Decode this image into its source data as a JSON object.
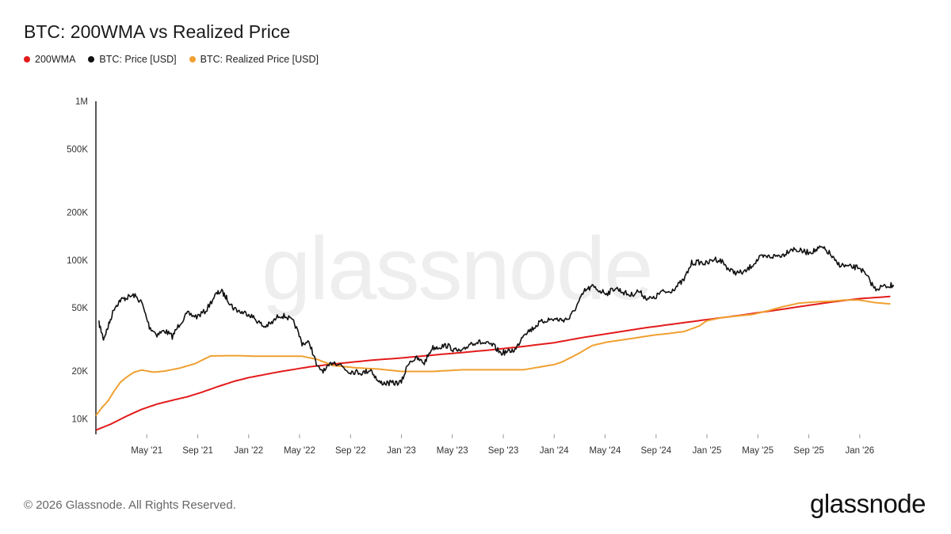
{
  "title": "BTC: 200WMA vs Realized Price",
  "legend": [
    {
      "label": "200WMA",
      "color": "#e31b1b"
    },
    {
      "label": "BTC: Price [USD]",
      "color": "#111111"
    },
    {
      "label": "BTC: Realized Price [USD]",
      "color": "#f0a030"
    }
  ],
  "watermark": "glassnode",
  "footer": {
    "copyright": "© 2026 Glassnode. All Rights Reserved.",
    "brand": "glassnode"
  },
  "chart_data": {
    "type": "line",
    "scale": "log",
    "title": "BTC: 200WMA vs Realized Price",
    "x_range": [
      2021.0,
      2026.25
    ],
    "ylim": [
      8000,
      1000000
    ],
    "y_ticks": [
      {
        "label": "1M",
        "value": 1000000
      },
      {
        "label": "500K",
        "value": 500000
      },
      {
        "label": "200K",
        "value": 200000
      },
      {
        "label": "100K",
        "value": 100000
      },
      {
        "label": "50K",
        "value": 50000
      },
      {
        "label": "20K",
        "value": 20000
      },
      {
        "label": "10K",
        "value": 10000
      }
    ],
    "x_ticks": [
      {
        "label": "May '21",
        "t": 2021.333
      },
      {
        "label": "Sep '21",
        "t": 2021.667
      },
      {
        "label": "Jan '22",
        "t": 2022.0
      },
      {
        "label": "May '22",
        "t": 2022.333
      },
      {
        "label": "Sep '22",
        "t": 2022.667
      },
      {
        "label": "Jan '23",
        "t": 2023.0
      },
      {
        "label": "May '23",
        "t": 2023.333
      },
      {
        "label": "Sep '23",
        "t": 2023.667
      },
      {
        "label": "Jan '24",
        "t": 2024.0
      },
      {
        "label": "May '24",
        "t": 2024.333
      },
      {
        "label": "Sep '24",
        "t": 2024.667
      },
      {
        "label": "Jan '25",
        "t": 2025.0
      },
      {
        "label": "May '25",
        "t": 2025.333
      },
      {
        "label": "Sep '25",
        "t": 2025.667
      },
      {
        "label": "Jan '26",
        "t": 2026.0
      }
    ],
    "series": [
      {
        "name": "BTC: Price [USD]",
        "color": "#111111",
        "t": [
          2021.02,
          2021.05,
          2021.08,
          2021.12,
          2021.16,
          2021.2,
          2021.25,
          2021.3,
          2021.35,
          2021.4,
          2021.45,
          2021.5,
          2021.55,
          2021.6,
          2021.66,
          2021.72,
          2021.78,
          2021.82,
          2021.86,
          2021.9,
          2021.95,
          2022.0,
          2022.05,
          2022.1,
          2022.15,
          2022.2,
          2022.25,
          2022.3,
          2022.35,
          2022.4,
          2022.45,
          2022.5,
          2022.55,
          2022.6,
          2022.65,
          2022.7,
          2022.75,
          2022.8,
          2022.85,
          2022.9,
          2022.95,
          2023.0,
          2023.05,
          2023.1,
          2023.15,
          2023.2,
          2023.25,
          2023.3,
          2023.35,
          2023.4,
          2023.45,
          2023.5,
          2023.55,
          2023.6,
          2023.65,
          2023.7,
          2023.75,
          2023.8,
          2023.85,
          2023.9,
          2023.95,
          2024.0,
          2024.05,
          2024.1,
          2024.15,
          2024.2,
          2024.25,
          2024.3,
          2024.35,
          2024.4,
          2024.45,
          2024.5,
          2024.55,
          2024.6,
          2024.65,
          2024.7,
          2024.75,
          2024.8,
          2024.85,
          2024.9,
          2024.95,
          2025.0,
          2025.05,
          2025.1,
          2025.15,
          2025.2,
          2025.25,
          2025.3,
          2025.35,
          2025.4,
          2025.45,
          2025.5,
          2025.55,
          2025.6,
          2025.65,
          2025.7,
          2025.75,
          2025.8,
          2025.85,
          2025.9,
          2025.95,
          2026.0,
          2026.05,
          2026.1,
          2026.15,
          2026.2,
          2026.22
        ],
        "values": [
          40000,
          32000,
          38000,
          50000,
          56000,
          58000,
          60000,
          54000,
          38000,
          34000,
          36000,
          33000,
          40000,
          46000,
          44000,
          48000,
          60000,
          64000,
          57000,
          50000,
          47000,
          46000,
          42000,
          38000,
          40000,
          45000,
          44000,
          40000,
          30000,
          30000,
          21000,
          20000,
          23000,
          22000,
          20000,
          19800,
          19500,
          20500,
          17000,
          16800,
          16800,
          17000,
          23000,
          24000,
          22500,
          28000,
          28500,
          29000,
          27000,
          26500,
          30000,
          30500,
          29800,
          29000,
          26000,
          26500,
          27500,
          34500,
          36500,
          40000,
          42000,
          42500,
          42000,
          43000,
          52000,
          64000,
          68000,
          64000,
          62000,
          67000,
          63000,
          60000,
          64000,
          58000,
          57000,
          63000,
          63000,
          68000,
          75000,
          96000,
          97000,
          95000,
          102000,
          98000,
          86000,
          83000,
          84000,
          94000,
          104000,
          105000,
          106000,
          108000,
          118000,
          115000,
          112000,
          114000,
          120000,
          111000,
          95000,
          92000,
          90000,
          90000,
          78000,
          66000,
          68000,
          69000,
          70000
        ]
      },
      {
        "name": "200WMA",
        "color": "#e31b1b",
        "t": [
          2021.0,
          2021.1,
          2021.2,
          2021.3,
          2021.4,
          2021.5,
          2021.6,
          2021.7,
          2021.8,
          2021.9,
          2022.0,
          2022.2,
          2022.4,
          2022.6,
          2022.8,
          2023.0,
          2023.2,
          2023.4,
          2023.6,
          2023.8,
          2024.0,
          2024.2,
          2024.4,
          2024.6,
          2024.8,
          2025.0,
          2025.2,
          2025.4,
          2025.6,
          2025.8,
          2026.0,
          2026.2
        ],
        "values": [
          8500,
          9300,
          10400,
          11500,
          12400,
          13100,
          13800,
          14800,
          16000,
          17200,
          18200,
          19800,
          21300,
          22400,
          23400,
          24200,
          25200,
          26200,
          27300,
          28600,
          30200,
          32700,
          35000,
          37500,
          39800,
          42200,
          44700,
          47600,
          50800,
          54200,
          57200,
          59000
        ]
      },
      {
        "name": "BTC: Realized Price [USD]",
        "color": "#f0a030",
        "t": [
          2021.0,
          2021.04,
          2021.08,
          2021.12,
          2021.16,
          2021.2,
          2021.25,
          2021.3,
          2021.38,
          2021.45,
          2021.55,
          2021.65,
          2021.75,
          2021.85,
          2021.95,
          2022.05,
          2022.2,
          2022.35,
          2022.45,
          2022.55,
          2022.7,
          2022.85,
          2023.0,
          2023.2,
          2023.4,
          2023.6,
          2023.8,
          2024.0,
          2024.05,
          2024.15,
          2024.25,
          2024.35,
          2024.5,
          2024.65,
          2024.75,
          2024.85,
          2024.95,
          2025.0,
          2025.1,
          2025.2,
          2025.3,
          2025.4,
          2025.5,
          2025.6,
          2025.7,
          2025.8,
          2025.9,
          2026.0,
          2026.05,
          2026.1,
          2026.2
        ],
        "values": [
          10500,
          11800,
          13000,
          15000,
          17000,
          18300,
          19700,
          20300,
          19700,
          20000,
          20900,
          22300,
          24900,
          25000,
          25000,
          24800,
          24800,
          24800,
          23700,
          21700,
          21000,
          20600,
          19900,
          19900,
          20400,
          20400,
          20400,
          22000,
          22800,
          25500,
          29000,
          30500,
          32000,
          33700,
          34500,
          35500,
          38500,
          41500,
          43500,
          44500,
          45500,
          48000,
          51000,
          53500,
          54500,
          55000,
          56000,
          56000,
          55000,
          54000,
          53000
        ]
      }
    ]
  }
}
